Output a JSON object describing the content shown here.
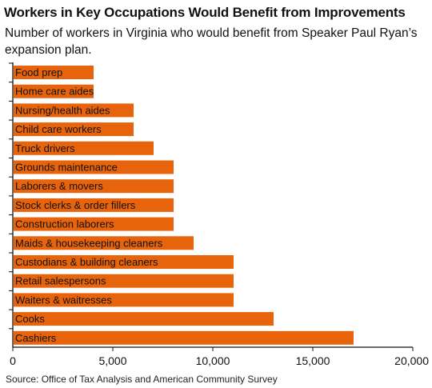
{
  "chart_data": {
    "type": "bar",
    "orientation": "horizontal",
    "title": "Workers in Key Occupations Would Benefit from Improvements",
    "subtitle": "Number of workers in Virginia who would benefit from Speaker Paul Ryan’s expansion plan.",
    "source": "Source: Office of Tax Analysis and American Community Survey",
    "categories": [
      "Food prep",
      "Home care aides",
      "Nursing/health aides",
      "Child care workers",
      "Truck drivers",
      "Grounds maintenance",
      "Laborers & movers",
      "Stock clerks & order fillers",
      "Construction laborers",
      "Maids & housekeeping cleaners",
      "Custodians & building cleaners",
      "Retail salespersons",
      "Waiters & waitresses",
      "Cooks",
      "Cashiers"
    ],
    "values": [
      4000,
      4000,
      6000,
      6000,
      7000,
      8000,
      8000,
      8000,
      8000,
      9000,
      11000,
      11000,
      11000,
      13000,
      17000
    ],
    "xlim": [
      0,
      20000
    ],
    "xticks": [
      0,
      5000,
      10000,
      15000,
      20000
    ],
    "xtick_labels": [
      "0",
      "5,000",
      "10,000",
      "15,000",
      "20,000"
    ],
    "bar_color": "#e8640c",
    "label_placement": "inside-left",
    "grid": false
  }
}
